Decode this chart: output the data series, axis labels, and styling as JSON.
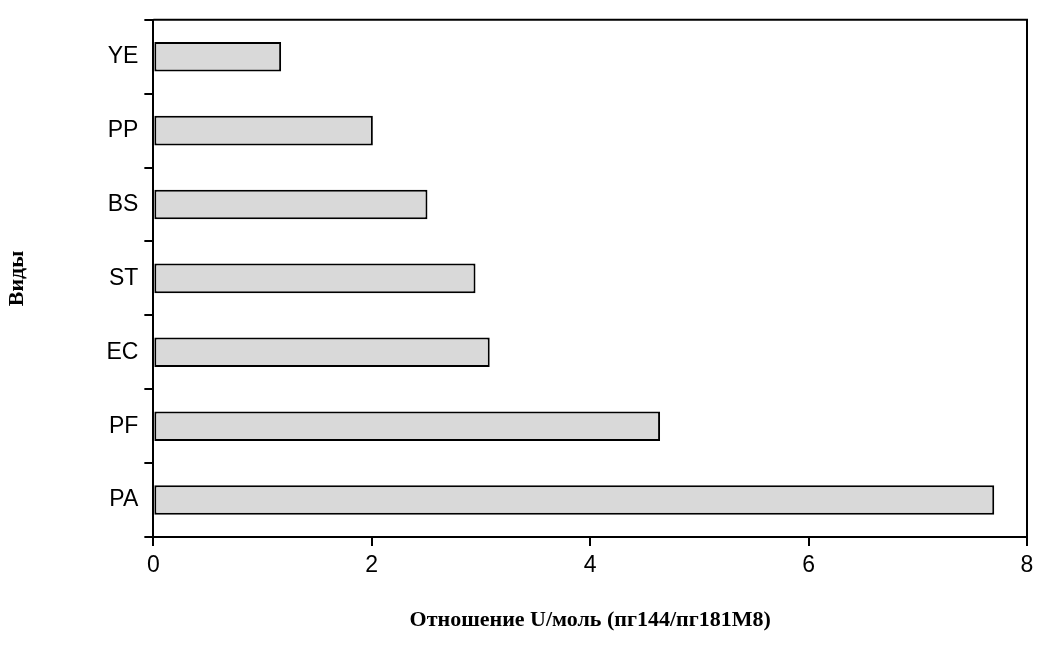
{
  "chart_data": {
    "type": "bar",
    "orientation": "horizontal",
    "xlabel": "Отношение U/моль (пг144/пг181M8)",
    "ylabel": "Виды",
    "categories": [
      "YE",
      "PP",
      "BS",
      "ST",
      "EC",
      "PF",
      "PA"
    ],
    "values": [
      1.17,
      2.01,
      2.51,
      2.95,
      3.08,
      4.64,
      7.7
    ],
    "color": "#d9d9d9",
    "xlim": [
      0,
      8
    ],
    "xticks": [
      0,
      2,
      4,
      6,
      8
    ]
  }
}
